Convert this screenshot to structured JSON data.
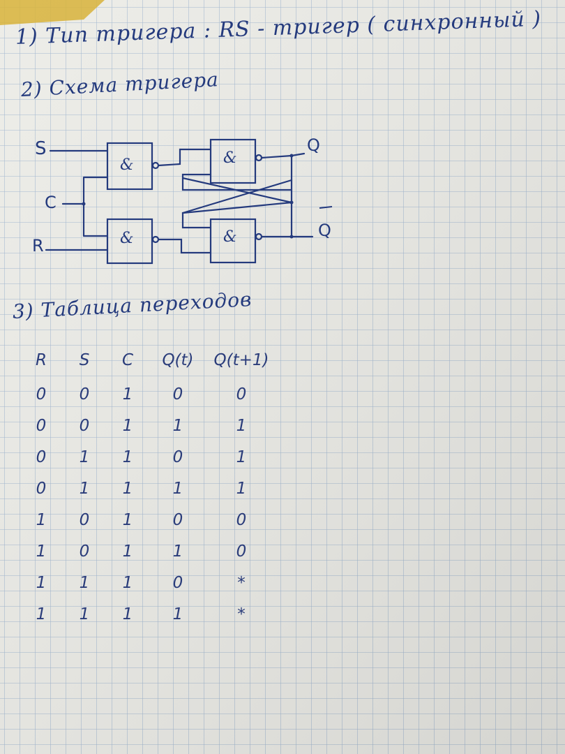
{
  "heading_type": "1) Тип тригера :  RS - тригер ( синхронный )",
  "heading_scheme": "2) Схема тригера",
  "heading_table": "3) Таблица переходов",
  "circuit": {
    "inputs": [
      "S",
      "C",
      "R"
    ],
    "outputs": [
      "Q",
      "Q"
    ],
    "gate_symbol": "&"
  },
  "table": {
    "columns": [
      "R",
      "S",
      "C",
      "Q(t)",
      "Q(t+1)"
    ],
    "rows": [
      [
        "0",
        "0",
        "1",
        "0",
        "0"
      ],
      [
        "0",
        "0",
        "1",
        "1",
        "1"
      ],
      [
        "0",
        "1",
        "1",
        "0",
        "1"
      ],
      [
        "0",
        "1",
        "1",
        "1",
        "1"
      ],
      [
        "1",
        "0",
        "1",
        "0",
        "0"
      ],
      [
        "1",
        "0",
        "1",
        "1",
        "0"
      ],
      [
        "1",
        "1",
        "1",
        "0",
        "*"
      ],
      [
        "1",
        "1",
        "1",
        "1",
        "*"
      ]
    ]
  },
  "colors": {
    "paper": "#ececE8",
    "grid": "#9fb5cf",
    "ink": "#243a7d"
  }
}
